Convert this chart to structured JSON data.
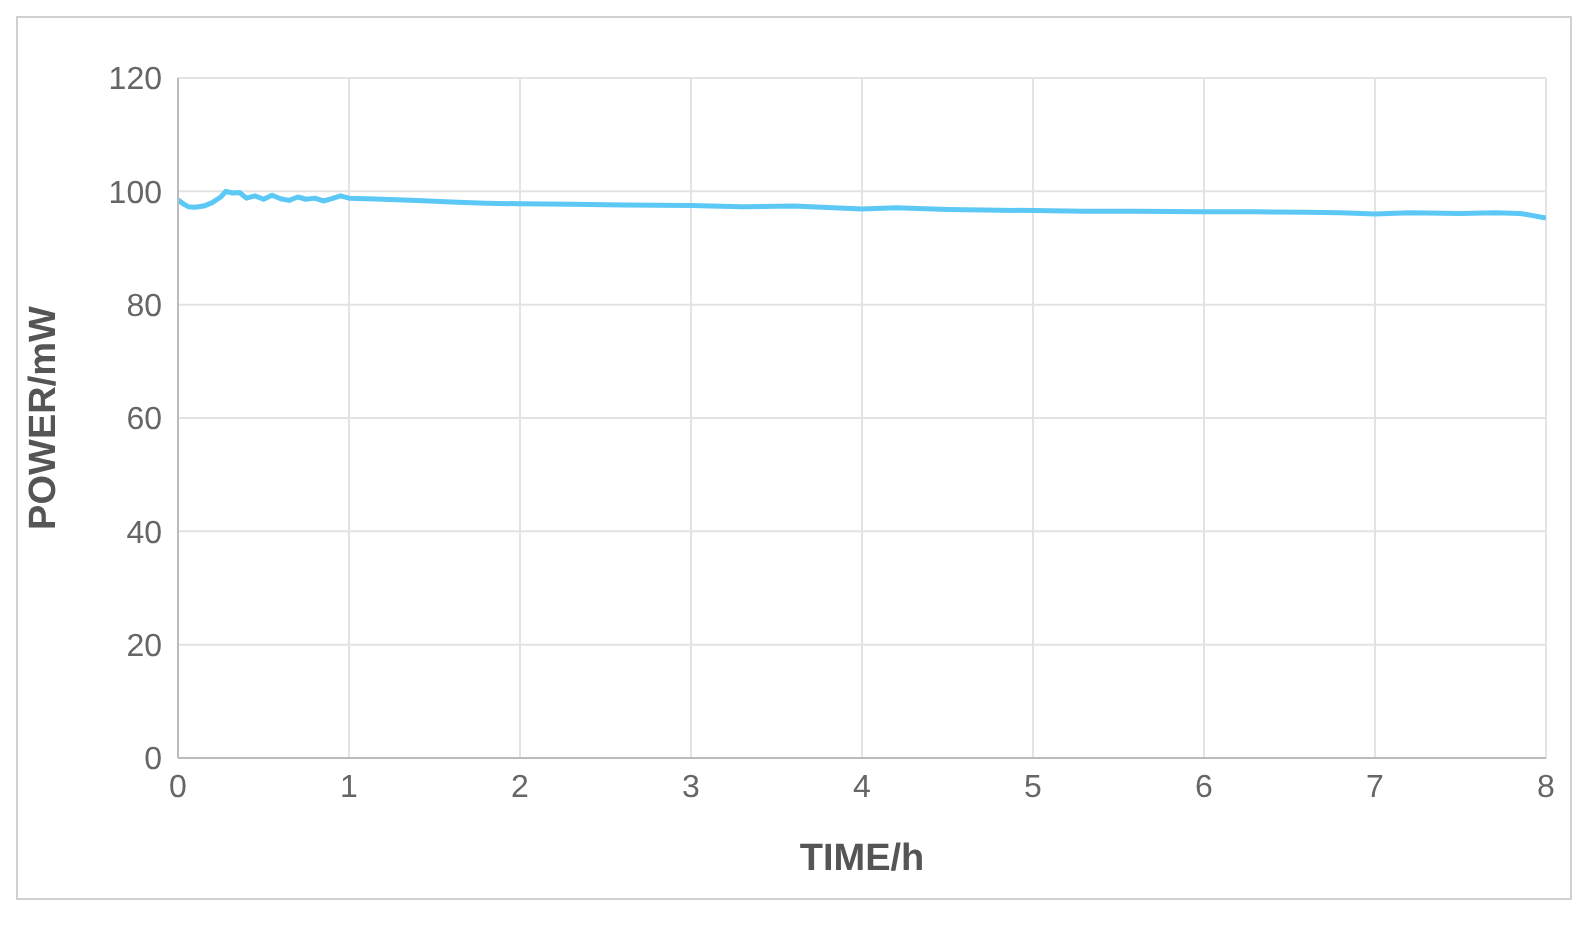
{
  "chart_data": {
    "type": "line",
    "xlabel": "TIME/h",
    "ylabel": "POWER/mW",
    "x": [
      0,
      0.03,
      0.06,
      0.1,
      0.15,
      0.2,
      0.25,
      0.28,
      0.32,
      0.36,
      0.4,
      0.45,
      0.5,
      0.55,
      0.6,
      0.65,
      0.7,
      0.75,
      0.8,
      0.85,
      0.9,
      0.95,
      1,
      1.2,
      1.4,
      1.6,
      1.8,
      2,
      2.3,
      2.6,
      3,
      3.3,
      3.6,
      4,
      4.2,
      4.5,
      5,
      5.3,
      5.6,
      6,
      6.3,
      6.6,
      6.8,
      7,
      7.2,
      7.5,
      7.7,
      7.85,
      8
    ],
    "series": [
      {
        "color": "#5bc8f5",
        "values": [
          98.5,
          97.8,
          97.3,
          97.2,
          97.4,
          98,
          99,
          100,
          99.7,
          99.8,
          98.8,
          99.2,
          98.6,
          99.3,
          98.7,
          98.4,
          99,
          98.6,
          98.8,
          98.3,
          98.7,
          99.2,
          98.8,
          98.6,
          98.4,
          98.1,
          97.9,
          97.8,
          97.7,
          97.6,
          97.5,
          97.3,
          97.4,
          96.9,
          97.1,
          96.8,
          96.6,
          96.5,
          96.5,
          96.4,
          96.4,
          96.3,
          96.2,
          96,
          96.2,
          96.1,
          96.2,
          96.1,
          95.3
        ]
      }
    ],
    "xlim": [
      0,
      8
    ],
    "xticks": [
      0,
      1,
      2,
      3,
      4,
      5,
      6,
      7,
      8
    ],
    "ylim": [
      0,
      120
    ],
    "yticks": [
      0,
      20,
      40,
      60,
      80,
      100,
      120
    ],
    "grid": true,
    "marker": "none",
    "line_style": "solid"
  }
}
